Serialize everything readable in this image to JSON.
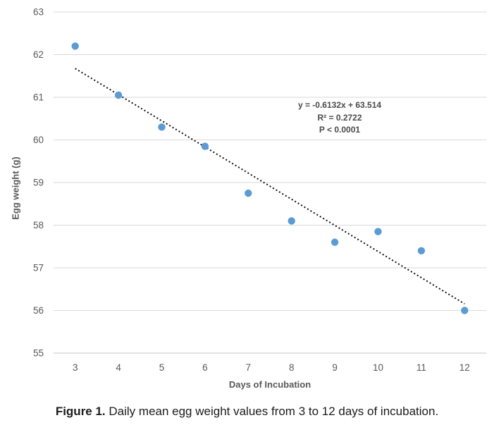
{
  "figure": {
    "caption_label": "Figure 1.",
    "caption_text": " Daily mean egg weight values from 3 to 12 days of incubation."
  },
  "chart_data": {
    "type": "scatter",
    "title": "",
    "xlabel": "Days of Incubation",
    "ylabel": "Egg weight (g)",
    "x": [
      3,
      4,
      5,
      6,
      7,
      8,
      9,
      10,
      11,
      12
    ],
    "y": [
      62.2,
      61.05,
      60.3,
      59.85,
      58.75,
      58.1,
      57.6,
      57.85,
      57.4,
      56.0
    ],
    "x_ticks": [
      3,
      4,
      5,
      6,
      7,
      8,
      9,
      10,
      11,
      12
    ],
    "y_ticks": [
      55,
      56,
      57,
      58,
      59,
      60,
      61,
      62,
      63
    ],
    "xlim": [
      2.5,
      12.5
    ],
    "ylim": [
      55,
      63
    ],
    "grid": "horizontal",
    "legend": "none",
    "trendline": {
      "slope": -0.6132,
      "intercept": 63.514,
      "x_start": 3,
      "x_end": 12,
      "style": "dotted"
    },
    "annotation": {
      "equation": "y = -0.6132x + 63.514",
      "r_squared": "R² = 0.2722",
      "p_value": "P < 0.0001"
    },
    "colors": {
      "marker": "#5b9bd5",
      "trend": "#0d0d0d",
      "grid": "#d9d9d9",
      "axis_line": "#c6c6c6",
      "axis_text": "#595959",
      "annotation_text": "#4a4a4a"
    }
  }
}
